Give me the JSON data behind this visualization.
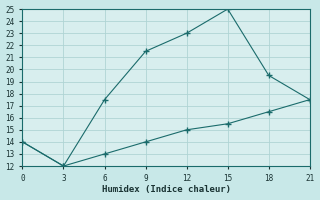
{
  "xlabel": "Humidex (Indice chaleur)",
  "background_color": "#c8e8e8",
  "plot_bg_color": "#d8eeee",
  "grid_color": "#b0d4d4",
  "line_color": "#1a6b6b",
  "spine_color": "#1a6b6b",
  "tick_color": "#1a3333",
  "xlim": [
    0,
    21
  ],
  "ylim": [
    12,
    25
  ],
  "xticks": [
    0,
    3,
    6,
    9,
    12,
    15,
    18,
    21
  ],
  "yticks": [
    12,
    13,
    14,
    15,
    16,
    17,
    18,
    19,
    20,
    21,
    22,
    23,
    24,
    25
  ],
  "line1_x": [
    0,
    3,
    6,
    9,
    12,
    15,
    18,
    21
  ],
  "line1_y": [
    14,
    12,
    17.5,
    21.5,
    23,
    25,
    19.5,
    17.5
  ],
  "line2_x": [
    0,
    3,
    6,
    9,
    12,
    15,
    18,
    21
  ],
  "line2_y": [
    14,
    12,
    13,
    14,
    15,
    15.5,
    16.5,
    17.5
  ]
}
